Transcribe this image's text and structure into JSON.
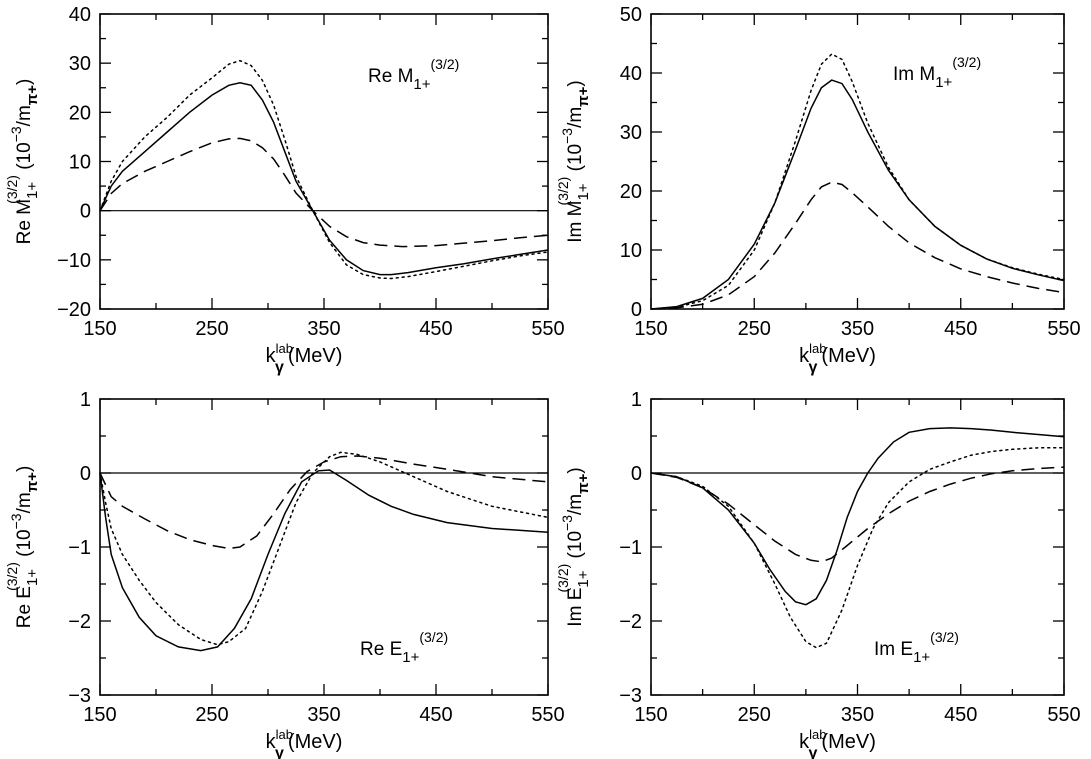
{
  "chart_data": [
    {
      "type": "line",
      "annotation": {
        "prefix": "Re  M",
        "sub": "1+",
        "sup": "(3/2)"
      },
      "ylabel": {
        "prefix": "Re  M",
        "sub": "1+",
        "sup": "(3/2)",
        "units": "  (10",
        "units_sup": "−3",
        "units_tail": "/m",
        "units_sub": "π+",
        "units_close": ")"
      },
      "xlabel": {
        "base": "k",
        "sup": "lab",
        "sub": "γ",
        "tail": "(MeV)"
      },
      "xlim": [
        150,
        550
      ],
      "ylim": [
        -20,
        40
      ],
      "xticks": [
        150,
        250,
        350,
        450,
        550
      ],
      "yticks": [
        -20,
        -10,
        0,
        10,
        20,
        30,
        40
      ],
      "ytick_labels": [
        "−20",
        "−10",
        "0",
        "10",
        "20",
        "30",
        "40"
      ],
      "zero_line": true,
      "series": [
        {
          "style": "solid",
          "x": [
            150,
            160,
            170,
            190,
            210,
            230,
            250,
            265,
            275,
            285,
            295,
            305,
            315,
            325,
            340,
            355,
            370,
            385,
            400,
            410,
            425,
            450,
            475,
            500,
            525,
            550
          ],
          "y": [
            0,
            5,
            8,
            12,
            16,
            20,
            23.5,
            25.5,
            26,
            25.5,
            22.5,
            18,
            12,
            6,
            0,
            -6,
            -10,
            -12.2,
            -13,
            -13,
            -12.6,
            -11.6,
            -10.8,
            -9.8,
            -8.9,
            -8
          ]
        },
        {
          "style": "dotted",
          "x": [
            150,
            160,
            170,
            190,
            210,
            230,
            250,
            265,
            275,
            285,
            295,
            305,
            315,
            325,
            340,
            355,
            370,
            385,
            400,
            410,
            425,
            450,
            475,
            500,
            525,
            550
          ],
          "y": [
            0,
            6,
            10,
            15,
            19,
            23.5,
            27,
            29.8,
            30.5,
            29.5,
            26.5,
            21.5,
            14.5,
            7,
            0,
            -6.5,
            -11,
            -13,
            -13.7,
            -13.8,
            -13.4,
            -12.4,
            -11.3,
            -10.2,
            -9.2,
            -8.4
          ]
        },
        {
          "style": "dashed",
          "x": [
            150,
            160,
            170,
            190,
            210,
            230,
            250,
            265,
            275,
            285,
            295,
            305,
            315,
            325,
            340,
            355,
            370,
            385,
            400,
            420,
            450,
            475,
            500,
            525,
            550
          ],
          "y": [
            0,
            3.5,
            5.5,
            8,
            10,
            12,
            13.8,
            14.6,
            14.7,
            14.2,
            12.8,
            10.5,
            7.2,
            3.6,
            0,
            -3.2,
            -5.3,
            -6.5,
            -7,
            -7.3,
            -7.1,
            -6.6,
            -6.1,
            -5.5,
            -5
          ]
        }
      ]
    },
    {
      "type": "line",
      "annotation": {
        "prefix": "Im  M",
        "sub": "1+",
        "sup": "(3/2)"
      },
      "ylabel": {
        "prefix": "Im  M",
        "sub": "1+",
        "sup": "(3/2)",
        "units": "  (10",
        "units_sup": "−3",
        "units_tail": "/m",
        "units_sub": "π+",
        "units_close": ")"
      },
      "xlabel": {
        "base": "k",
        "sup": "lab",
        "sub": "γ",
        "tail": "(MeV)"
      },
      "xlim": [
        150,
        550
      ],
      "ylim": [
        0,
        50
      ],
      "xticks": [
        150,
        250,
        350,
        450,
        550
      ],
      "yticks": [
        0,
        10,
        20,
        30,
        40,
        50
      ],
      "ytick_labels": [
        "0",
        "10",
        "20",
        "30",
        "40",
        "50"
      ],
      "zero_line": false,
      "series": [
        {
          "style": "solid",
          "x": [
            150,
            175,
            200,
            225,
            250,
            270,
            290,
            305,
            315,
            325,
            335,
            345,
            360,
            380,
            400,
            425,
            450,
            475,
            500,
            525,
            550
          ],
          "y": [
            0,
            0.4,
            1.8,
            5,
            11,
            18,
            27,
            34,
            37.5,
            38.8,
            38.2,
            35.5,
            30,
            23.5,
            18.5,
            14,
            10.8,
            8.5,
            6.9,
            5.8,
            4.8
          ]
        },
        {
          "style": "dotted",
          "x": [
            150,
            175,
            200,
            225,
            250,
            270,
            290,
            305,
            315,
            325,
            335,
            345,
            360,
            380,
            400,
            425,
            450,
            475,
            500,
            525,
            550
          ],
          "y": [
            0,
            0.3,
            1.4,
            4,
            10,
            18,
            28.5,
            37,
            41.5,
            43.2,
            42.3,
            38.5,
            31.5,
            24,
            18.5,
            14,
            10.8,
            8.5,
            7,
            5.9,
            5
          ]
        },
        {
          "style": "dashed",
          "x": [
            150,
            175,
            200,
            225,
            250,
            270,
            290,
            305,
            315,
            325,
            335,
            345,
            360,
            380,
            400,
            425,
            450,
            475,
            500,
            525,
            550
          ],
          "y": [
            0,
            0.2,
            0.8,
            2.4,
            5.5,
            9.5,
            14.5,
            18.5,
            20.7,
            21.5,
            21.1,
            19.7,
            17.3,
            14,
            11.2,
            8.7,
            6.8,
            5.5,
            4.4,
            3.5,
            2.8
          ]
        }
      ]
    },
    {
      "type": "line",
      "annotation": {
        "prefix": "Re  E",
        "sub": "1+",
        "sup": "(3/2)"
      },
      "ylabel": {
        "prefix": "Re  E",
        "sub": "1+",
        "sup": "(3/2)",
        "units": "  (10",
        "units_sup": "−3",
        "units_tail": "/m",
        "units_sub": "π+",
        "units_close": ")"
      },
      "xlabel": {
        "base": "k",
        "sup": "lab",
        "sub": "γ",
        "tail": "(MeV)"
      },
      "xlim": [
        150,
        550
      ],
      "ylim": [
        -3,
        1
      ],
      "xticks": [
        150,
        250,
        350,
        450,
        550
      ],
      "yticks": [
        -3,
        -2,
        -1,
        0,
        1
      ],
      "ytick_labels": [
        "−3",
        "−2",
        "−1",
        "0",
        "1"
      ],
      "zero_line": true,
      "series": [
        {
          "style": "solid",
          "x": [
            150,
            155,
            160,
            170,
            185,
            200,
            220,
            240,
            255,
            270,
            285,
            300,
            315,
            330,
            345,
            355,
            370,
            390,
            410,
            430,
            460,
            500,
            550
          ],
          "y": [
            0,
            -0.6,
            -1.1,
            -1.55,
            -1.95,
            -2.2,
            -2.35,
            -2.4,
            -2.35,
            -2.1,
            -1.7,
            -1.1,
            -0.55,
            -0.12,
            0.03,
            0.04,
            -0.1,
            -0.3,
            -0.45,
            -0.56,
            -0.67,
            -0.75,
            -0.8
          ]
        },
        {
          "style": "dotted",
          "x": [
            150,
            155,
            160,
            170,
            185,
            200,
            220,
            240,
            255,
            265,
            280,
            295,
            310,
            325,
            340,
            355,
            365,
            380,
            400,
            430,
            460,
            500,
            550
          ],
          "y": [
            0,
            -0.4,
            -0.75,
            -1.1,
            -1.45,
            -1.75,
            -2.05,
            -2.25,
            -2.32,
            -2.28,
            -2.1,
            -1.6,
            -1,
            -0.4,
            0,
            0.22,
            0.28,
            0.25,
            0.15,
            -0.05,
            -0.25,
            -0.45,
            -0.6
          ]
        },
        {
          "style": "dashed",
          "x": [
            150,
            160,
            170,
            190,
            210,
            230,
            250,
            265,
            275,
            290,
            305,
            320,
            335,
            350,
            365,
            380,
            400,
            430,
            460,
            500,
            550
          ],
          "y": [
            0,
            -0.32,
            -0.45,
            -0.62,
            -0.78,
            -0.9,
            -0.98,
            -1.02,
            -1,
            -0.85,
            -0.55,
            -0.22,
            0.02,
            0.15,
            0.22,
            0.23,
            0.2,
            0.12,
            0.05,
            -0.05,
            -0.12
          ]
        }
      ]
    },
    {
      "type": "line",
      "annotation": {
        "prefix": "Im  E",
        "sub": "1+",
        "sup": "(3/2)"
      },
      "ylabel": {
        "prefix": "Im  E",
        "sub": "1+",
        "sup": "(3/2)",
        "units": "  (10",
        "units_sup": "−3",
        "units_tail": "/m",
        "units_sub": "π+",
        "units_close": ")"
      },
      "xlabel": {
        "base": "k",
        "sup": "lab",
        "sub": "γ",
        "tail": "(MeV)"
      },
      "xlim": [
        150,
        550
      ],
      "ylim": [
        -3,
        1
      ],
      "xticks": [
        150,
        250,
        350,
        450,
        550
      ],
      "yticks": [
        -3,
        -2,
        -1,
        0,
        1
      ],
      "ytick_labels": [
        "−3",
        "−2",
        "−1",
        "0",
        "1"
      ],
      "zero_line": true,
      "series": [
        {
          "style": "solid",
          "x": [
            150,
            175,
            200,
            225,
            250,
            265,
            280,
            290,
            300,
            310,
            320,
            330,
            340,
            350,
            360,
            370,
            385,
            400,
            420,
            440,
            460,
            480,
            500,
            525,
            550
          ],
          "y": [
            0,
            -0.05,
            -0.2,
            -0.5,
            -0.95,
            -1.3,
            -1.6,
            -1.74,
            -1.78,
            -1.7,
            -1.45,
            -1.05,
            -0.6,
            -0.25,
            0,
            0.2,
            0.42,
            0.55,
            0.6,
            0.61,
            0.6,
            0.58,
            0.55,
            0.52,
            0.49
          ]
        },
        {
          "style": "dotted",
          "x": [
            150,
            175,
            200,
            225,
            250,
            270,
            285,
            300,
            310,
            320,
            335,
            350,
            365,
            380,
            400,
            420,
            440,
            460,
            480,
            500,
            525,
            550
          ],
          "y": [
            0,
            -0.05,
            -0.18,
            -0.45,
            -0.95,
            -1.5,
            -1.95,
            -2.28,
            -2.36,
            -2.3,
            -1.85,
            -1.25,
            -0.75,
            -0.4,
            -0.12,
            0.05,
            0.15,
            0.24,
            0.29,
            0.32,
            0.34,
            0.34
          ]
        },
        {
          "style": "dashed",
          "x": [
            150,
            175,
            200,
            225,
            250,
            270,
            290,
            305,
            315,
            325,
            340,
            360,
            380,
            400,
            420,
            440,
            460,
            480,
            500,
            525,
            550
          ],
          "y": [
            0,
            -0.06,
            -0.2,
            -0.42,
            -0.7,
            -0.92,
            -1.1,
            -1.18,
            -1.2,
            -1.15,
            -0.98,
            -0.75,
            -0.55,
            -0.38,
            -0.25,
            -0.15,
            -0.07,
            -0.01,
            0.03,
            0.06,
            0.08
          ]
        }
      ]
    }
  ]
}
